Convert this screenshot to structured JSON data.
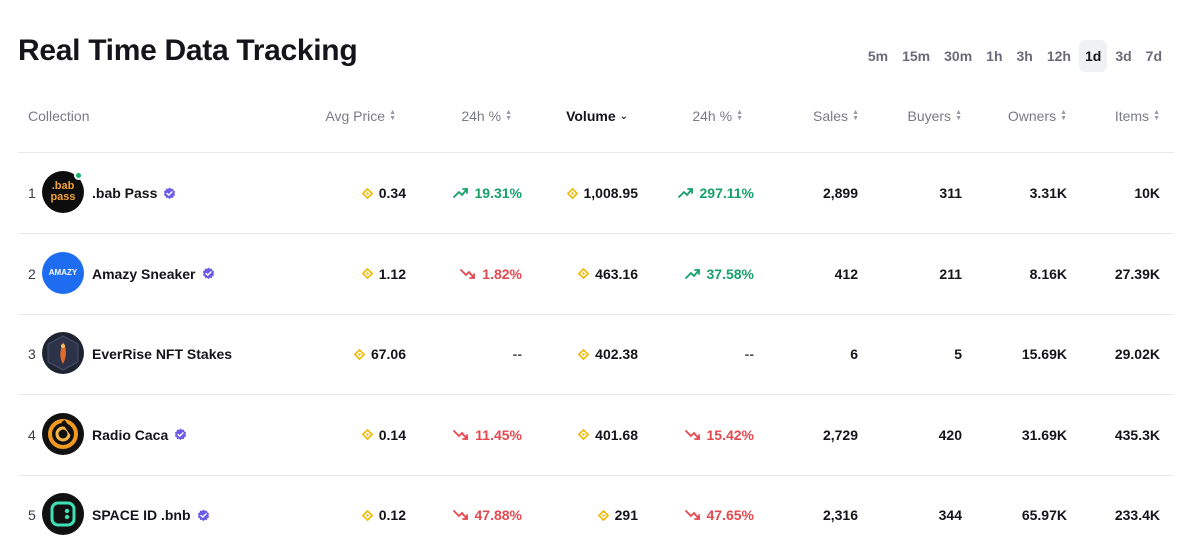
{
  "page": {
    "title": "Real Time Data Tracking"
  },
  "time_ranges": {
    "items": [
      "5m",
      "15m",
      "30m",
      "1h",
      "3h",
      "12h",
      "1d",
      "3d",
      "7d"
    ],
    "active": "1d"
  },
  "table": {
    "headers": {
      "collection": "Collection",
      "avg_price": "Avg Price",
      "change_price": "24h %",
      "volume": "Volume",
      "change_volume": "24h %",
      "sales": "Sales",
      "buyers": "Buyers",
      "owners": "Owners",
      "items": "Items"
    },
    "rows": [
      {
        "rank": "1",
        "name": ".bab Pass",
        "verified": true,
        "online": true,
        "logo": "bab-pass-logo",
        "logo_text": ".bab pass",
        "avg_price": "0.34",
        "price_change": "19.31%",
        "price_dir": "up",
        "volume": "1,008.95",
        "volume_change": "297.11%",
        "volume_dir": "up",
        "sales": "2,899",
        "buyers": "311",
        "owners": "3.31K",
        "items": "10K"
      },
      {
        "rank": "2",
        "name": "Amazy Sneaker",
        "verified": true,
        "online": false,
        "logo": "amazy-logo",
        "logo_text": "AMAZY",
        "avg_price": "1.12",
        "price_change": "1.82%",
        "price_dir": "down",
        "volume": "463.16",
        "volume_change": "37.58%",
        "volume_dir": "up",
        "sales": "412",
        "buyers": "211",
        "owners": "8.16K",
        "items": "27.39K"
      },
      {
        "rank": "3",
        "name": "EverRise NFT Stakes",
        "verified": false,
        "online": false,
        "logo": "everrise-logo",
        "logo_text": "",
        "avg_price": "67.06",
        "price_change": "--",
        "price_dir": "none",
        "volume": "402.38",
        "volume_change": "--",
        "volume_dir": "none",
        "sales": "6",
        "buyers": "5",
        "owners": "15.69K",
        "items": "29.02K"
      },
      {
        "rank": "4",
        "name": "Radio Caca",
        "verified": true,
        "online": false,
        "logo": "radio-caca-logo",
        "logo_text": "",
        "avg_price": "0.14",
        "price_change": "11.45%",
        "price_dir": "down",
        "volume": "401.68",
        "volume_change": "15.42%",
        "volume_dir": "down",
        "sales": "2,729",
        "buyers": "420",
        "owners": "31.69K",
        "items": "435.3K"
      },
      {
        "rank": "5",
        "name": "SPACE ID .bnb",
        "verified": true,
        "online": false,
        "logo": "space-id-logo",
        "logo_text": "",
        "avg_price": "0.12",
        "price_change": "47.88%",
        "price_dir": "down",
        "volume": "291",
        "volume_change": "47.65%",
        "volume_dir": "down",
        "sales": "2,316",
        "buyers": "344",
        "owners": "65.97K",
        "items": "233.4K"
      }
    ]
  },
  "colors": {
    "up": "#16a06a",
    "down": "#e4484f",
    "bnb": "#f0b90b",
    "verified": "#6b5ce7"
  }
}
